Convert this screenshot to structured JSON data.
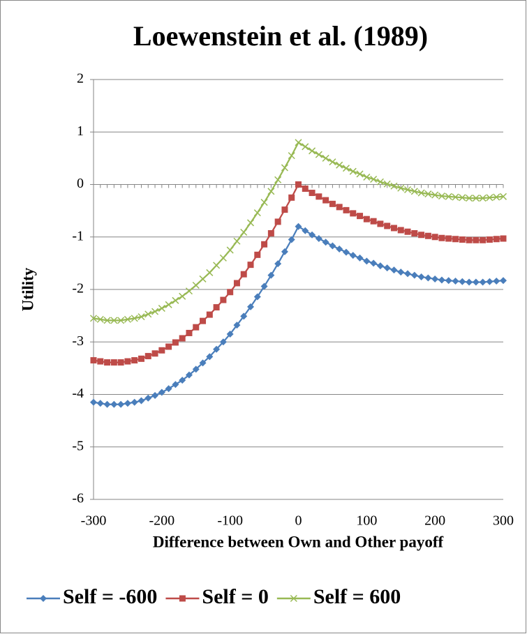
{
  "chart_data": {
    "type": "line",
    "title": "Loewenstein et al. (1989)",
    "x_label": "Difference between Own and Other payoff",
    "y_label": "Utility",
    "x": [
      -300,
      -290,
      -280,
      -270,
      -260,
      -250,
      -240,
      -230,
      -220,
      -210,
      -200,
      -190,
      -180,
      -170,
      -160,
      -150,
      -140,
      -130,
      -120,
      -110,
      -100,
      -90,
      -80,
      -70,
      -60,
      -50,
      -40,
      -30,
      -20,
      -10,
      0,
      10,
      20,
      30,
      40,
      50,
      60,
      70,
      80,
      90,
      100,
      110,
      120,
      130,
      140,
      150,
      160,
      170,
      180,
      190,
      200,
      210,
      220,
      230,
      240,
      250,
      260,
      270,
      280,
      290,
      300
    ],
    "series": [
      {
        "name": "Self = -600",
        "color": "#4a7ebb",
        "marker": "diamond",
        "values": [
          -4.15,
          -4.17,
          -4.19,
          -4.19,
          -4.19,
          -4.17,
          -4.15,
          -4.12,
          -4.07,
          -4.02,
          -3.96,
          -3.89,
          -3.81,
          -3.73,
          -3.63,
          -3.52,
          -3.4,
          -3.28,
          -3.14,
          -3.0,
          -2.85,
          -2.68,
          -2.51,
          -2.33,
          -2.14,
          -1.94,
          -1.73,
          -1.51,
          -1.28,
          -1.05,
          -0.8,
          -0.88,
          -0.96,
          -1.03,
          -1.1,
          -1.17,
          -1.23,
          -1.29,
          -1.35,
          -1.4,
          -1.46,
          -1.5,
          -1.55,
          -1.59,
          -1.63,
          -1.67,
          -1.7,
          -1.73,
          -1.76,
          -1.78,
          -1.8,
          -1.82,
          -1.83,
          -1.84,
          -1.85,
          -1.86,
          -1.86,
          -1.86,
          -1.85,
          -1.84,
          -1.83
        ]
      },
      {
        "name": "Self = 0",
        "color": "#be4b48",
        "marker": "square",
        "values": [
          -3.35,
          -3.37,
          -3.39,
          -3.39,
          -3.39,
          -3.37,
          -3.35,
          -3.32,
          -3.27,
          -3.22,
          -3.16,
          -3.09,
          -3.01,
          -2.93,
          -2.83,
          -2.72,
          -2.6,
          -2.48,
          -2.34,
          -2.2,
          -2.05,
          -1.88,
          -1.71,
          -1.53,
          -1.34,
          -1.14,
          -0.93,
          -0.71,
          -0.48,
          -0.25,
          0,
          -0.08,
          -0.16,
          -0.23,
          -0.3,
          -0.37,
          -0.43,
          -0.49,
          -0.55,
          -0.6,
          -0.66,
          -0.7,
          -0.75,
          -0.79,
          -0.83,
          -0.87,
          -0.9,
          -0.93,
          -0.96,
          -0.98,
          -1.0,
          -1.02,
          -1.03,
          -1.04,
          -1.05,
          -1.06,
          -1.06,
          -1.06,
          -1.05,
          -1.04,
          -1.03
        ]
      },
      {
        "name": "Self = 600",
        "color": "#98b954",
        "marker": "x",
        "values": [
          -2.55,
          -2.57,
          -2.59,
          -2.59,
          -2.59,
          -2.57,
          -2.55,
          -2.52,
          -2.47,
          -2.42,
          -2.36,
          -2.29,
          -2.21,
          -2.13,
          -2.03,
          -1.92,
          -1.8,
          -1.68,
          -1.54,
          -1.4,
          -1.25,
          -1.08,
          -0.91,
          -0.73,
          -0.54,
          -0.34,
          -0.13,
          0.09,
          0.32,
          0.55,
          0.8,
          0.72,
          0.64,
          0.57,
          0.5,
          0.43,
          0.37,
          0.31,
          0.25,
          0.2,
          0.14,
          0.1,
          0.05,
          0.01,
          -0.03,
          -0.07,
          -0.1,
          -0.13,
          -0.16,
          -0.18,
          -0.2,
          -0.22,
          -0.23,
          -0.24,
          -0.25,
          -0.26,
          -0.26,
          -0.26,
          -0.25,
          -0.24,
          -0.23
        ]
      }
    ],
    "xlim": [
      -300,
      300
    ],
    "xticks": [
      -300,
      -200,
      -100,
      0,
      100,
      200,
      300
    ],
    "ylim": [
      -6,
      2
    ],
    "yticks": [
      -6,
      -5,
      -4,
      -3,
      -2,
      -1,
      0,
      1,
      2
    ],
    "grid": true,
    "legend": "bottom"
  }
}
